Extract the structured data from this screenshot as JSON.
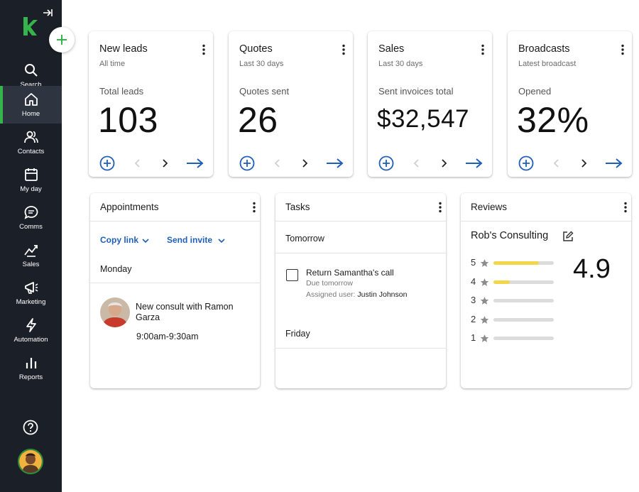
{
  "nav": {
    "items": [
      {
        "label": "Search",
        "icon": "search-icon"
      },
      {
        "label": "Home",
        "icon": "home-icon"
      },
      {
        "label": "Contacts",
        "icon": "contacts-icon"
      },
      {
        "label": "My day",
        "icon": "calendar-icon"
      },
      {
        "label": "Comms",
        "icon": "chat-icon"
      },
      {
        "label": "Sales",
        "icon": "sales-icon"
      },
      {
        "label": "Marketing",
        "icon": "megaphone-icon"
      },
      {
        "label": "Automation",
        "icon": "lightning-icon"
      },
      {
        "label": "Reports",
        "icon": "reports-icon"
      }
    ],
    "active": "Home"
  },
  "colors": {
    "brand_green": "#34b44a",
    "sidebar": "#1b1f27",
    "link_blue": "#1f5fb5",
    "star_fill": "#f4d64a"
  },
  "stats": [
    {
      "title": "New leads",
      "subtitle": "All time",
      "label": "Total leads",
      "value": "103"
    },
    {
      "title": "Quotes",
      "subtitle": "Last 30 days",
      "label": "Quotes sent",
      "value": "26"
    },
    {
      "title": "Sales",
      "subtitle": "Last 30 days",
      "label": "Sent invoices total",
      "value": "$32,547"
    },
    {
      "title": "Broadcasts",
      "subtitle": "Latest broadcast",
      "label": "Opened",
      "value": "32%"
    }
  ],
  "appointments": {
    "title": "Appointments",
    "copy_link": "Copy link",
    "send_invite": "Send invite",
    "day": "Monday",
    "event_title": "New consult with Ramon Garza",
    "event_time": "9:00am-9:30am"
  },
  "tasks": {
    "title": "Tasks",
    "group1": "Tomorrow",
    "task_title": "Return Samantha's call",
    "task_due": "Due tomorrow",
    "assigned_prefix": "Assigned user:",
    "assigned_user": "Justin Johnson",
    "group2": "Friday"
  },
  "reviews": {
    "title": "Reviews",
    "business": "Rob's Consulting",
    "rating": "4.9",
    "distribution": [
      {
        "stars": "5",
        "fraction": 0.75
      },
      {
        "stars": "4",
        "fraction": 0.27
      },
      {
        "stars": "3",
        "fraction": 0
      },
      {
        "stars": "2",
        "fraction": 0
      },
      {
        "stars": "1",
        "fraction": 0
      }
    ]
  }
}
